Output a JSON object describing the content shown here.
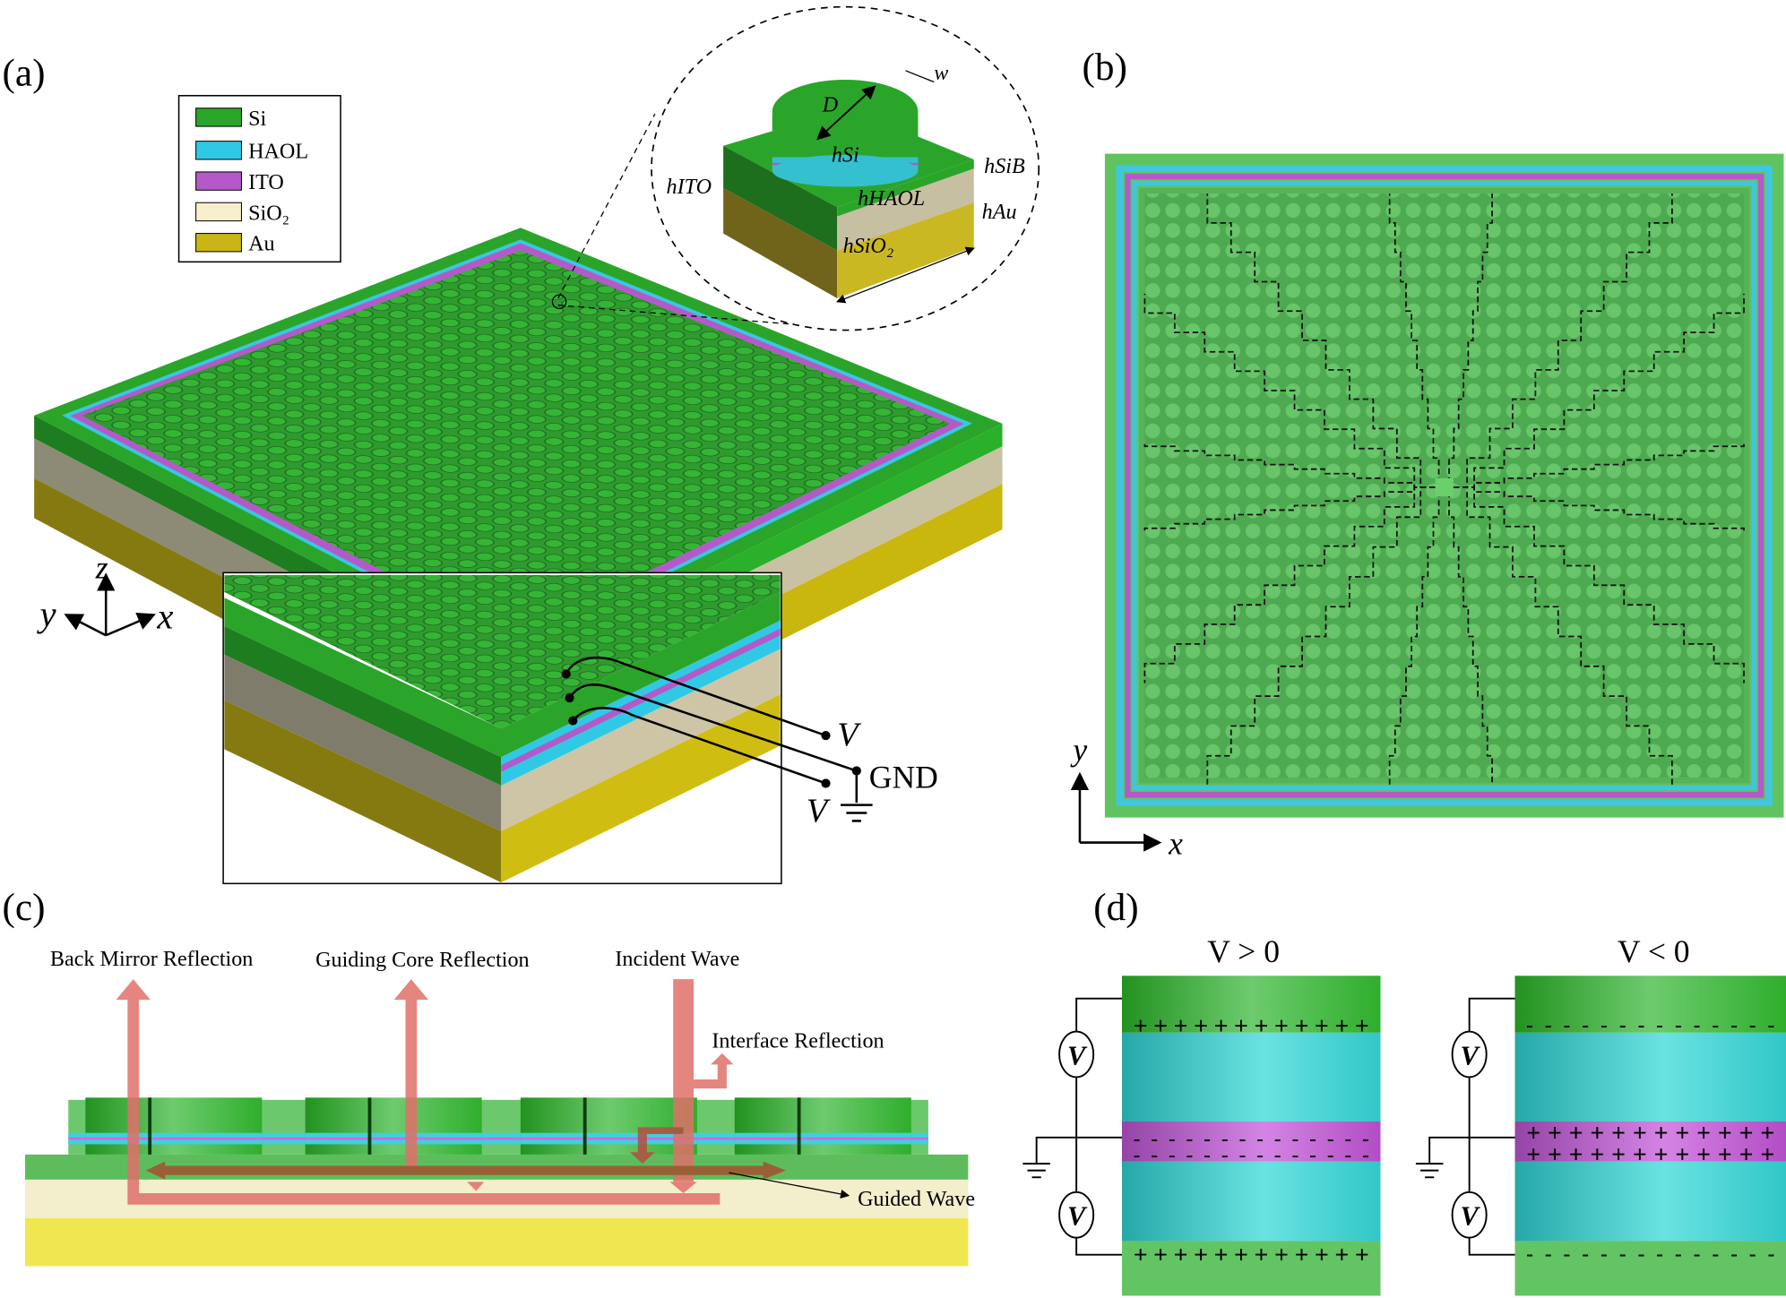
{
  "panels": {
    "a": "(a)",
    "b": "(b)",
    "c": "(c)",
    "d": "(d)"
  },
  "colors": {
    "si": "#2aa52a",
    "haol": "#35c8d8",
    "ito": "#b05ac8",
    "sio2": "#f7efcf",
    "au": "#c8b81a",
    "arrow": "#e0706a"
  },
  "legend": [
    {
      "label": "Si",
      "color": "#2aa52a"
    },
    {
      "label": "HAOL",
      "color": "#2fc9e6"
    },
    {
      "label": "ITO",
      "color": "#b45ac8"
    },
    {
      "label": "SiO₂",
      "color": "#f8efcc"
    },
    {
      "label": "Au",
      "color": "#c9b515"
    }
  ],
  "unit_cell": {
    "D": "D",
    "w": "w",
    "h_si": "hSi",
    "h_sib": "hSiB",
    "h_ito": "hITO",
    "h_haol": "hHAOL",
    "h_au": "hAu",
    "h_sio2": "hSiO₂"
  },
  "axes_a": {
    "z": "z",
    "y": "y",
    "x": "x"
  },
  "circuit_a": {
    "v1": "V",
    "gnd": "GND",
    "v2": "V"
  },
  "axes_b": {
    "y": "y",
    "x": "x"
  },
  "panel_c": {
    "back_mirror": "Back Mirror Reflection",
    "guiding_core": "Guiding Core Reflection",
    "incident": "Incident Wave",
    "interface": "Interface Reflection",
    "guided": "Guided Wave"
  },
  "panel_d": {
    "pos_title": "V > 0",
    "neg_title": "V < 0",
    "meter": "V",
    "plus_row": "+ + + + + + + + + + + +",
    "minus_row": "- - - - - - - - - - - - - -"
  }
}
